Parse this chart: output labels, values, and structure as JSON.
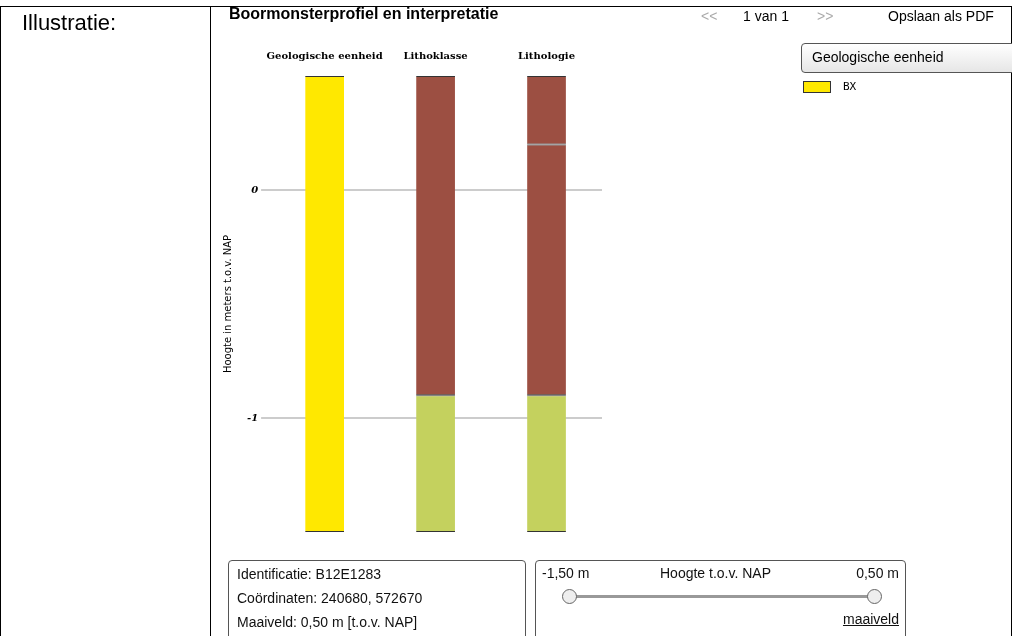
{
  "chart_data": {
    "type": "bar",
    "title": "Boormonsterprofiel en interpretatie",
    "ylabel": "Hoogte in meters t.o.v. NAP",
    "categories": [
      "Geologische eenheid",
      "Lithoklasse",
      "Lithologie"
    ],
    "series": [
      {
        "name": "BX",
        "color": "#ffe800",
        "values": [
          2.0,
          null,
          null
        ],
        "base": [
          -1.5,
          null,
          null
        ]
      },
      {
        "color": "#9c4f42",
        "values": [
          null,
          1.4,
          0.3
        ],
        "base": [
          null,
          -0.9,
          0.2
        ]
      },
      {
        "color": "#9c4f42",
        "values": [
          null,
          null,
          1.1
        ],
        "base": [
          null,
          null,
          -0.9
        ]
      },
      {
        "color": "#c4d15e",
        "values": [
          null,
          0.6,
          0.6
        ],
        "base": [
          null,
          -1.5,
          -1.5
        ]
      }
    ],
    "ylim": [
      -1.5,
      0.5
    ],
    "yticks": [
      0,
      -1
    ],
    "grid": "y",
    "legend": "top right",
    "annotations": [
      "Illustratie:",
      "<<",
      "1 van 1",
      ">>",
      "Opslaan als PDF",
      "Geologische eenheid",
      "Identificatie: B12E1283",
      "Coördinaten: 240680, 572670",
      "Maaiveld: 0,50 m [t.o.v. NAP]",
      "-1,50 m",
      "Hoogte t.o.v. NAP",
      "0,50 m",
      "maaiveld"
    ]
  }
}
